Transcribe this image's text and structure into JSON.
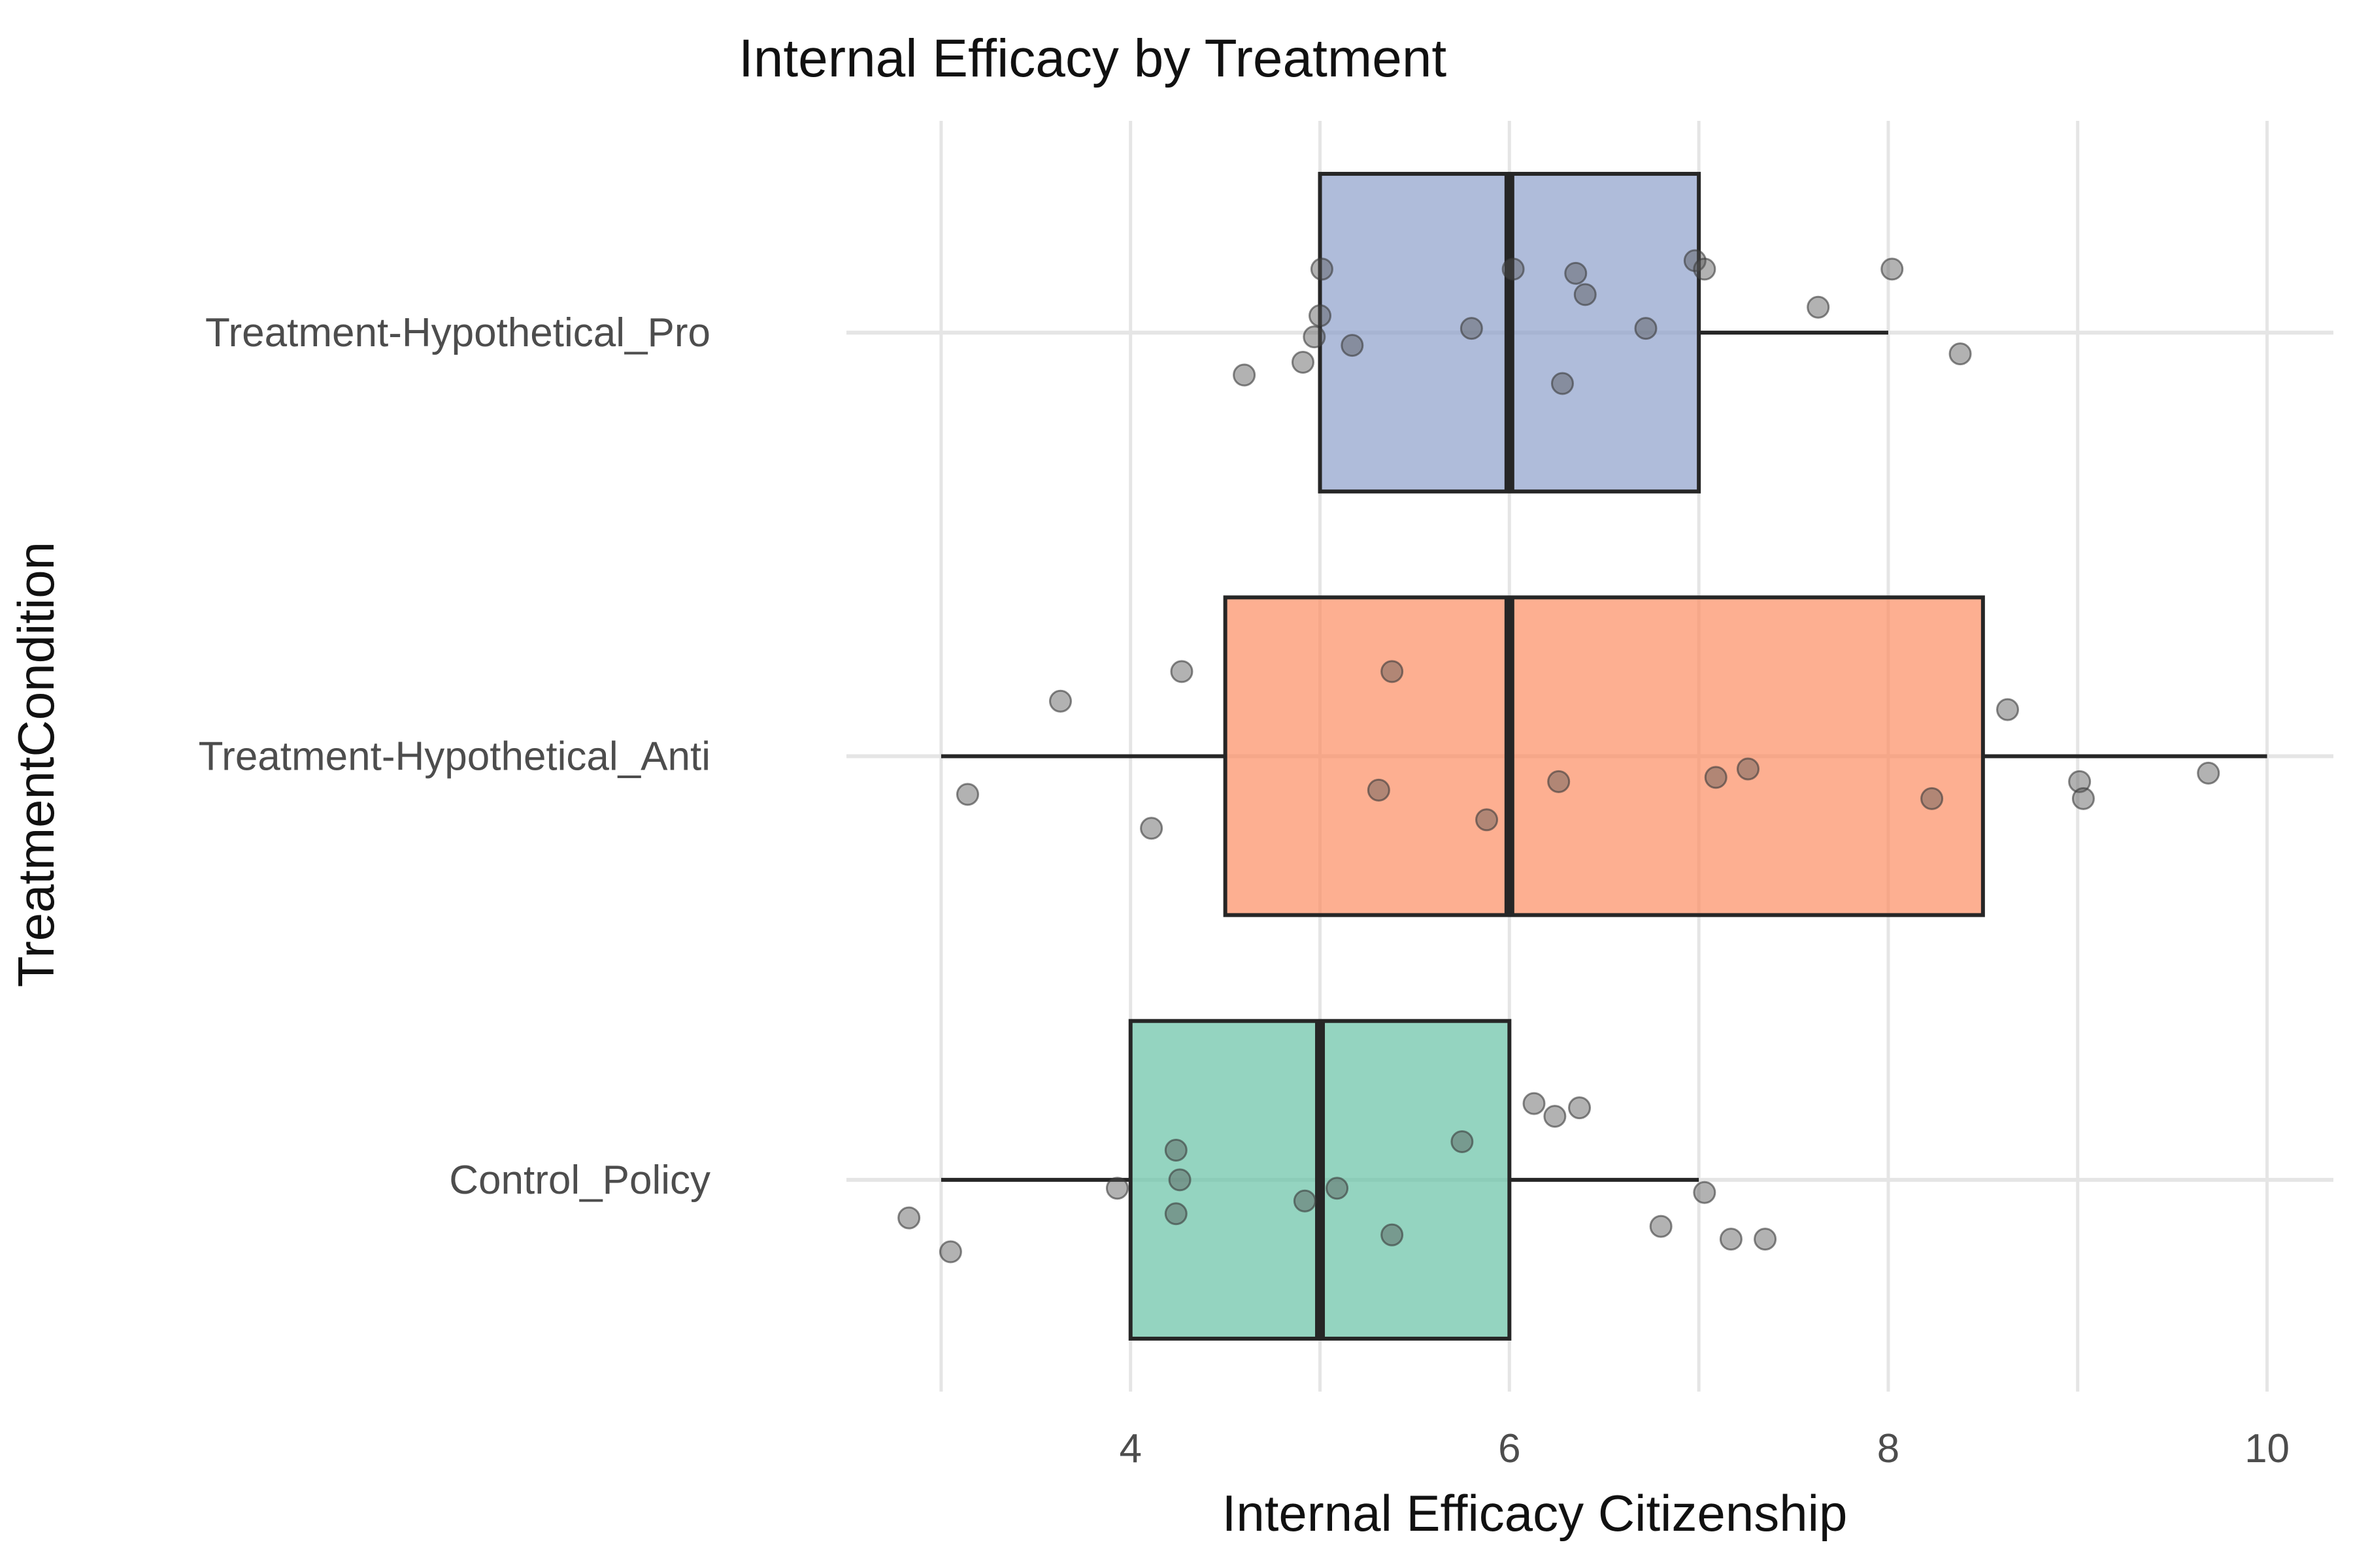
{
  "chart_data": {
    "type": "box",
    "title": "Internal Efficacy by Treatment",
    "xlabel": "Internal Efficacy Citizenship",
    "ylabel": "TreatmentCondition",
    "orientation": "horizontal",
    "xlim": [
      2.5,
      10.35
    ],
    "xticks": [
      4,
      6,
      8,
      10
    ],
    "grid": true,
    "legend": "none",
    "categories": [
      "Treatment-Hypothetical_Pro",
      "Treatment-Hypothetical_Anti",
      "Control_Policy"
    ],
    "boxes": [
      {
        "category": "Treatment-Hypothetical_Pro",
        "color": "#8DA0CB",
        "whisker_low": 5,
        "q1": 5,
        "median": 6,
        "q3": 7,
        "whisker_high": 8,
        "points": [
          {
            "x": 5.01,
            "jitter": 0.15
          },
          {
            "x": 6.02,
            "jitter": 0.15
          },
          {
            "x": 6.35,
            "jitter": 0.14
          },
          {
            "x": 6.98,
            "jitter": 0.17
          },
          {
            "x": 7.03,
            "jitter": 0.15
          },
          {
            "x": 8.02,
            "jitter": 0.15
          },
          {
            "x": 6.4,
            "jitter": 0.09
          },
          {
            "x": 5.0,
            "jitter": 0.04
          },
          {
            "x": 4.97,
            "jitter": -0.01
          },
          {
            "x": 5.17,
            "jitter": -0.03
          },
          {
            "x": 5.8,
            "jitter": 0.01
          },
          {
            "x": 6.72,
            "jitter": 0.01
          },
          {
            "x": 7.63,
            "jitter": 0.06
          },
          {
            "x": 4.91,
            "jitter": -0.07
          },
          {
            "x": 4.6,
            "jitter": -0.1
          },
          {
            "x": 6.28,
            "jitter": -0.12
          },
          {
            "x": 8.38,
            "jitter": -0.05
          }
        ]
      },
      {
        "category": "Treatment-Hypothetical_Anti",
        "color": "#FC8D62",
        "whisker_low": 3,
        "q1": 4.5,
        "median": 6,
        "q3": 8.5,
        "whisker_high": 10,
        "points": [
          {
            "x": 4.27,
            "jitter": 0.2
          },
          {
            "x": 5.38,
            "jitter": 0.2
          },
          {
            "x": 3.63,
            "jitter": 0.13
          },
          {
            "x": 8.63,
            "jitter": 0.11
          },
          {
            "x": 3.14,
            "jitter": -0.09
          },
          {
            "x": 4.11,
            "jitter": -0.17
          },
          {
            "x": 5.31,
            "jitter": -0.08
          },
          {
            "x": 5.88,
            "jitter": -0.15
          },
          {
            "x": 6.26,
            "jitter": -0.06
          },
          {
            "x": 7.09,
            "jitter": -0.05
          },
          {
            "x": 7.26,
            "jitter": -0.03
          },
          {
            "x": 8.23,
            "jitter": -0.1
          },
          {
            "x": 9.01,
            "jitter": -0.06
          },
          {
            "x": 9.03,
            "jitter": -0.1
          },
          {
            "x": 9.69,
            "jitter": -0.04
          }
        ]
      },
      {
        "category": "Control_Policy",
        "color": "#66C2A5",
        "whisker_low": 3,
        "q1": 4,
        "median": 5,
        "q3": 6,
        "whisker_high": 7,
        "points": [
          {
            "x": 6.13,
            "jitter": 0.18
          },
          {
            "x": 6.24,
            "jitter": 0.15
          },
          {
            "x": 6.37,
            "jitter": 0.17
          },
          {
            "x": 4.24,
            "jitter": 0.07
          },
          {
            "x": 5.75,
            "jitter": 0.09
          },
          {
            "x": 4.26,
            "jitter": 0.0
          },
          {
            "x": 3.93,
            "jitter": -0.02
          },
          {
            "x": 5.09,
            "jitter": -0.02
          },
          {
            "x": 4.92,
            "jitter": -0.05
          },
          {
            "x": 7.03,
            "jitter": -0.03
          },
          {
            "x": 4.24,
            "jitter": -0.08
          },
          {
            "x": 2.83,
            "jitter": -0.09
          },
          {
            "x": 6.8,
            "jitter": -0.11
          },
          {
            "x": 5.38,
            "jitter": -0.13
          },
          {
            "x": 7.17,
            "jitter": -0.14
          },
          {
            "x": 7.35,
            "jitter": -0.14
          },
          {
            "x": 3.05,
            "jitter": -0.17
          }
        ]
      }
    ]
  }
}
